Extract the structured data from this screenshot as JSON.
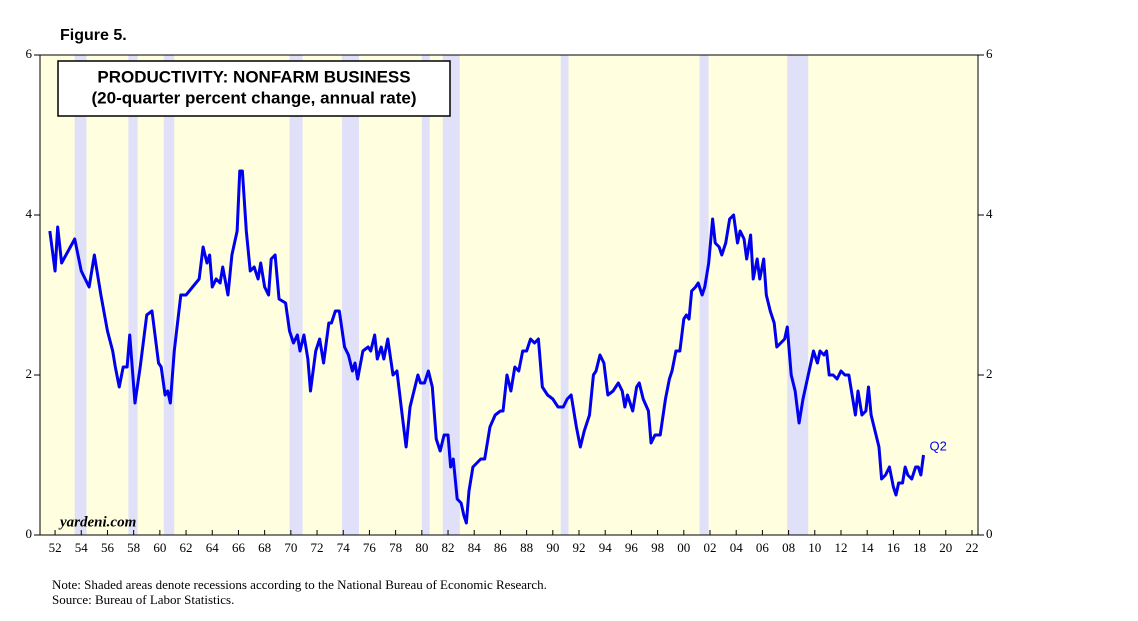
{
  "chart_data": {
    "type": "line",
    "figure_label": "Figure 5.",
    "title": "PRODUCTIVITY: NONFARM BUSINESS",
    "subtitle": "(20-quarter percent change, annual rate)",
    "watermark": "yardeni.com",
    "note": "Note: Shaded areas denote recessions according to the National Bureau of Economic Research.",
    "source": "Source: Bureau of Labor Statistics.",
    "annotation": "Q2",
    "background": "#ffffe0",
    "recession_color": "#e0e0f8",
    "recessions": [
      [
        1953.5,
        1954.4
      ],
      [
        1957.6,
        1958.3
      ],
      [
        1960.3,
        1961.1
      ],
      [
        1969.9,
        1970.9
      ],
      [
        1973.9,
        1975.2
      ],
      [
        1980.0,
        1980.6
      ],
      [
        1981.6,
        1982.9
      ],
      [
        1990.6,
        1991.2
      ],
      [
        2001.2,
        2001.9
      ],
      [
        2007.9,
        2009.5
      ]
    ],
    "xlim": [
      1950.85,
      2022.46
    ],
    "xticks": [
      {
        "value": 1952,
        "label": "52"
      },
      {
        "value": 1954,
        "label": "54"
      },
      {
        "value": 1956,
        "label": "56"
      },
      {
        "value": 1958,
        "label": "58"
      },
      {
        "value": 1960,
        "label": "60"
      },
      {
        "value": 1962,
        "label": "62"
      },
      {
        "value": 1964,
        "label": "64"
      },
      {
        "value": 1966,
        "label": "66"
      },
      {
        "value": 1968,
        "label": "68"
      },
      {
        "value": 1970,
        "label": "70"
      },
      {
        "value": 1972,
        "label": "72"
      },
      {
        "value": 1974,
        "label": "74"
      },
      {
        "value": 1976,
        "label": "76"
      },
      {
        "value": 1978,
        "label": "78"
      },
      {
        "value": 1980,
        "label": "80"
      },
      {
        "value": 1982,
        "label": "82"
      },
      {
        "value": 1984,
        "label": "84"
      },
      {
        "value": 1986,
        "label": "86"
      },
      {
        "value": 1988,
        "label": "88"
      },
      {
        "value": 1990,
        "label": "90"
      },
      {
        "value": 1992,
        "label": "92"
      },
      {
        "value": 1994,
        "label": "94"
      },
      {
        "value": 1996,
        "label": "96"
      },
      {
        "value": 1998,
        "label": "98"
      },
      {
        "value": 2000,
        "label": "00"
      },
      {
        "value": 2002,
        "label": "02"
      },
      {
        "value": 2004,
        "label": "04"
      },
      {
        "value": 2006,
        "label": "06"
      },
      {
        "value": 2008,
        "label": "08"
      },
      {
        "value": 2010,
        "label": "10"
      },
      {
        "value": 2012,
        "label": "12"
      },
      {
        "value": 2014,
        "label": "14"
      },
      {
        "value": 2016,
        "label": "16"
      },
      {
        "value": 2018,
        "label": "18"
      },
      {
        "value": 2020,
        "label": "20"
      },
      {
        "value": 2022,
        "label": "22"
      }
    ],
    "ylim": [
      0,
      6
    ],
    "yticks": [
      0,
      2,
      4,
      6
    ],
    "y2lim": [
      0,
      6
    ],
    "y2ticks": [
      0,
      2,
      4,
      6
    ],
    "x": [
      1951.6,
      1952.0,
      1952.2,
      1952.5,
      1953.0,
      1953.5,
      1954.0,
      1954.6,
      1955.0,
      1955.5,
      1956.0,
      1956.4,
      1956.6,
      1956.9,
      1957.2,
      1957.5,
      1957.7,
      1958.1,
      1958.5,
      1959.0,
      1959.4,
      1959.9,
      1960.1,
      1960.4,
      1960.6,
      1960.8,
      1961.1,
      1961.6,
      1962.0,
      1962.5,
      1963.0,
      1963.3,
      1963.6,
      1963.8,
      1964.0,
      1964.3,
      1964.6,
      1964.8,
      1965.2,
      1965.5,
      1965.9,
      1966.1,
      1966.3,
      1966.6,
      1966.9,
      1967.2,
      1967.5,
      1967.7,
      1968.0,
      1968.3,
      1968.5,
      1968.8,
      1969.1,
      1969.6,
      1969.9,
      1970.2,
      1970.5,
      1970.7,
      1971.0,
      1971.3,
      1971.5,
      1971.9,
      1972.2,
      1972.5,
      1972.9,
      1973.1,
      1973.4,
      1973.7,
      1974.1,
      1974.4,
      1974.7,
      1974.9,
      1975.1,
      1975.5,
      1975.9,
      1976.1,
      1976.4,
      1976.6,
      1976.9,
      1977.1,
      1977.4,
      1977.8,
      1978.1,
      1978.5,
      1978.8,
      1979.1,
      1979.7,
      1979.9,
      1980.2,
      1980.5,
      1980.8,
      1981.1,
      1981.4,
      1981.7,
      1982.0,
      1982.2,
      1982.4,
      1982.7,
      1983.0,
      1983.2,
      1983.4,
      1983.6,
      1983.9,
      1984.2,
      1984.5,
      1984.8,
      1985.2,
      1985.6,
      1986.0,
      1986.2,
      1986.5,
      1986.8,
      1987.1,
      1987.4,
      1987.7,
      1988.0,
      1988.3,
      1988.6,
      1988.9,
      1989.2,
      1989.6,
      1990.0,
      1990.4,
      1990.8,
      1991.1,
      1991.4,
      1991.8,
      1992.1,
      1992.4,
      1992.8,
      1993.1,
      1993.3,
      1993.6,
      1993.9,
      1994.2,
      1994.6,
      1995.0,
      1995.3,
      1995.5,
      1995.7,
      1996.1,
      1996.4,
      1996.6,
      1996.9,
      1997.3,
      1997.5,
      1997.8,
      1998.2,
      1998.6,
      1998.9,
      1999.1,
      1999.4,
      1999.7,
      2000.0,
      2000.2,
      2000.4,
      2000.6,
      2000.9,
      2001.1,
      2001.4,
      2001.6,
      2001.9,
      2002.2,
      2002.4,
      2002.7,
      2002.9,
      2003.2,
      2003.5,
      2003.8,
      2004.1,
      2004.3,
      2004.6,
      2004.8,
      2005.1,
      2005.3,
      2005.6,
      2005.8,
      2006.1,
      2006.3,
      2006.6,
      2006.9,
      2007.1,
      2007.4,
      2007.7,
      2007.9,
      2008.2,
      2008.5,
      2008.8,
      2009.1,
      2009.5,
      2009.9,
      2010.2,
      2010.4,
      2010.7,
      2010.9,
      2011.1,
      2011.4,
      2011.7,
      2012.0,
      2012.3,
      2012.6,
      2012.9,
      2013.1,
      2013.3,
      2013.6,
      2013.9,
      2014.1,
      2014.3,
      2014.6,
      2014.9,
      2015.1,
      2015.4,
      2015.7,
      2016.0,
      2016.2,
      2016.4,
      2016.7,
      2016.9,
      2017.1,
      2017.4,
      2017.7,
      2017.9,
      2018.1,
      2018.3
    ],
    "series": [
      {
        "name": "Productivity",
        "color": "#0000ee",
        "values": [
          3.8,
          3.3,
          3.85,
          3.4,
          3.55,
          3.7,
          3.3,
          3.1,
          3.5,
          3.0,
          2.55,
          2.3,
          2.1,
          1.85,
          2.1,
          2.1,
          2.5,
          1.65,
          2.1,
          2.75,
          2.8,
          2.15,
          2.1,
          1.75,
          1.8,
          1.65,
          2.3,
          3.0,
          3.0,
          3.1,
          3.2,
          3.6,
          3.4,
          3.5,
          3.1,
          3.2,
          3.15,
          3.35,
          3.0,
          3.5,
          3.8,
          4.55,
          4.55,
          3.8,
          3.3,
          3.35,
          3.2,
          3.4,
          3.1,
          3.0,
          3.45,
          3.5,
          2.95,
          2.9,
          2.55,
          2.4,
          2.5,
          2.3,
          2.5,
          2.2,
          1.8,
          2.3,
          2.45,
          2.15,
          2.65,
          2.65,
          2.8,
          2.8,
          2.35,
          2.25,
          2.05,
          2.15,
          1.95,
          2.3,
          2.35,
          2.3,
          2.5,
          2.2,
          2.35,
          2.2,
          2.45,
          2.0,
          2.05,
          1.5,
          1.1,
          1.6,
          2.0,
          1.9,
          1.9,
          2.05,
          1.85,
          1.2,
          1.05,
          1.25,
          1.25,
          0.85,
          0.95,
          0.45,
          0.4,
          0.25,
          0.15,
          0.55,
          0.85,
          0.9,
          0.95,
          0.95,
          1.35,
          1.5,
          1.55,
          1.55,
          2.0,
          1.8,
          2.1,
          2.05,
          2.3,
          2.3,
          2.45,
          2.4,
          2.45,
          1.85,
          1.75,
          1.7,
          1.6,
          1.6,
          1.7,
          1.75,
          1.35,
          1.1,
          1.3,
          1.5,
          2.0,
          2.05,
          2.25,
          2.15,
          1.75,
          1.8,
          1.9,
          1.8,
          1.6,
          1.75,
          1.55,
          1.85,
          1.9,
          1.7,
          1.55,
          1.15,
          1.25,
          1.25,
          1.7,
          1.95,
          2.05,
          2.3,
          2.3,
          2.7,
          2.75,
          2.7,
          3.05,
          3.1,
          3.15,
          3.0,
          3.1,
          3.4,
          3.95,
          3.65,
          3.6,
          3.5,
          3.65,
          3.95,
          4.0,
          3.65,
          3.8,
          3.7,
          3.45,
          3.75,
          3.2,
          3.45,
          3.2,
          3.45,
          3.0,
          2.8,
          2.65,
          2.35,
          2.4,
          2.45,
          2.6,
          2.0,
          1.8,
          1.4,
          1.7,
          2.0,
          2.3,
          2.15,
          2.3,
          2.25,
          2.3,
          2.0,
          2.0,
          1.95,
          2.05,
          2.0,
          2.0,
          1.7,
          1.5,
          1.8,
          1.5,
          1.55,
          1.85,
          1.5,
          1.3,
          1.1,
          0.7,
          0.75,
          0.85,
          0.6,
          0.5,
          0.65,
          0.65,
          0.85,
          0.75,
          0.7,
          0.85,
          0.85,
          0.75,
          1.0
        ]
      }
    ]
  }
}
